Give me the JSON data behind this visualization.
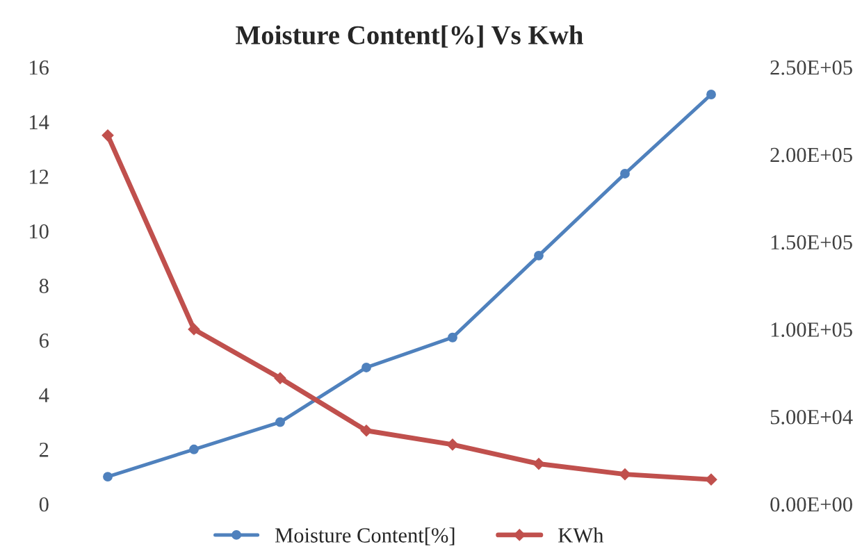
{
  "chart_data": {
    "type": "line",
    "title": "Moisture Content[%] Vs Kwh",
    "categories": [
      null,
      null,
      null,
      null,
      null,
      null,
      null,
      null
    ],
    "series": [
      {
        "name": "Moisture Content[%]",
        "color": "#4f81bd",
        "marker": "circle",
        "values": [
          1,
          2,
          3,
          5,
          6.1,
          9.1,
          12.1,
          15
        ]
      },
      {
        "name": "KWh",
        "color": "#c0504d",
        "marker": "diamond",
        "axis": "y2",
        "values": [
          211000,
          100000,
          72000,
          42000,
          34000,
          23000,
          17000,
          14000
        ]
      }
    ],
    "ylim": [
      0,
      16
    ],
    "yticks": [
      0,
      2,
      4,
      6,
      8,
      10,
      12,
      14,
      16
    ],
    "y2lim": [
      0,
      250000
    ],
    "y2ticks": [
      {
        "value": 0,
        "label": "0.00E+00"
      },
      {
        "value": 50000,
        "label": "5.00E+04"
      },
      {
        "value": 100000,
        "label": "1.00E+05"
      },
      {
        "value": 150000,
        "label": "1.50E+05"
      },
      {
        "value": 200000,
        "label": "2.00E+05"
      },
      {
        "value": 250000,
        "label": "2.50E+05"
      }
    ],
    "legend": "bottom",
    "grid": false,
    "line_style": "solid"
  }
}
